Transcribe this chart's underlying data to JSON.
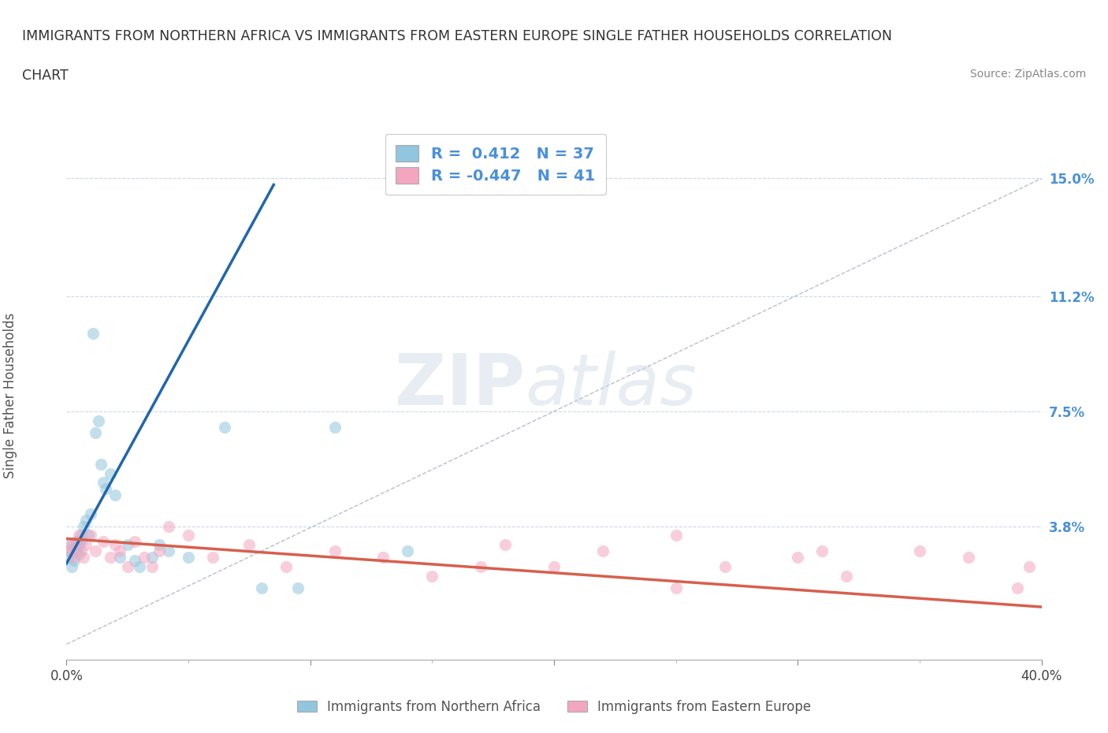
{
  "title_line1": "IMMIGRANTS FROM NORTHERN AFRICA VS IMMIGRANTS FROM EASTERN EUROPE SINGLE FATHER HOUSEHOLDS CORRELATION",
  "title_line2": "CHART",
  "source": "Source: ZipAtlas.com",
  "ylabel": "Single Father Households",
  "xlim": [
    0.0,
    0.4
  ],
  "ylim": [
    -0.005,
    0.165
  ],
  "yticks": [
    0.038,
    0.075,
    0.112,
    0.15
  ],
  "ytick_labels": [
    "3.8%",
    "7.5%",
    "11.2%",
    "15.0%"
  ],
  "xticks": [
    0.0,
    0.1,
    0.2,
    0.3,
    0.4
  ],
  "xtick_labels": [
    "0.0%",
    "",
    "",
    "",
    "40.0%"
  ],
  "R_blue": 0.412,
  "N_blue": 37,
  "R_pink": -0.447,
  "N_pink": 41,
  "blue_color": "#92c5de",
  "pink_color": "#f4a6c0",
  "blue_line_color": "#2166ac",
  "pink_line_color": "#d6604d",
  "watermark": "ZIPatlas",
  "blue_scatter_x": [
    0.001,
    0.001,
    0.002,
    0.002,
    0.003,
    0.003,
    0.004,
    0.004,
    0.005,
    0.005,
    0.006,
    0.006,
    0.007,
    0.008,
    0.009,
    0.01,
    0.011,
    0.012,
    0.013,
    0.014,
    0.015,
    0.016,
    0.018,
    0.02,
    0.022,
    0.025,
    0.028,
    0.03,
    0.035,
    0.038,
    0.042,
    0.05,
    0.065,
    0.08,
    0.095,
    0.11,
    0.14
  ],
  "blue_scatter_y": [
    0.028,
    0.03,
    0.025,
    0.032,
    0.027,
    0.031,
    0.03,
    0.033,
    0.029,
    0.032,
    0.035,
    0.033,
    0.038,
    0.04,
    0.035,
    0.042,
    0.1,
    0.068,
    0.072,
    0.058,
    0.052,
    0.05,
    0.055,
    0.048,
    0.028,
    0.032,
    0.027,
    0.025,
    0.028,
    0.032,
    0.03,
    0.028,
    0.07,
    0.018,
    0.018,
    0.07,
    0.03
  ],
  "pink_scatter_x": [
    0.001,
    0.002,
    0.003,
    0.004,
    0.005,
    0.006,
    0.007,
    0.008,
    0.01,
    0.012,
    0.015,
    0.018,
    0.02,
    0.022,
    0.025,
    0.028,
    0.032,
    0.035,
    0.038,
    0.042,
    0.05,
    0.06,
    0.075,
    0.09,
    0.11,
    0.13,
    0.15,
    0.17,
    0.2,
    0.22,
    0.25,
    0.27,
    0.3,
    0.32,
    0.35,
    0.37,
    0.39,
    0.395,
    0.25,
    0.18,
    0.31
  ],
  "pink_scatter_y": [
    0.032,
    0.03,
    0.028,
    0.033,
    0.035,
    0.03,
    0.028,
    0.032,
    0.035,
    0.03,
    0.033,
    0.028,
    0.032,
    0.03,
    0.025,
    0.033,
    0.028,
    0.025,
    0.03,
    0.038,
    0.035,
    0.028,
    0.032,
    0.025,
    0.03,
    0.028,
    0.022,
    0.025,
    0.025,
    0.03,
    0.018,
    0.025,
    0.028,
    0.022,
    0.03,
    0.028,
    0.018,
    0.025,
    0.035,
    0.032,
    0.03
  ],
  "blue_trend_x": [
    0.0,
    0.085
  ],
  "blue_trend_y": [
    0.026,
    0.148
  ],
  "pink_trend_x": [
    0.0,
    0.4
  ],
  "pink_trend_y": [
    0.034,
    0.012
  ],
  "diag_line_x": [
    0.0,
    0.4
  ],
  "diag_line_y": [
    0.0,
    0.15
  ]
}
